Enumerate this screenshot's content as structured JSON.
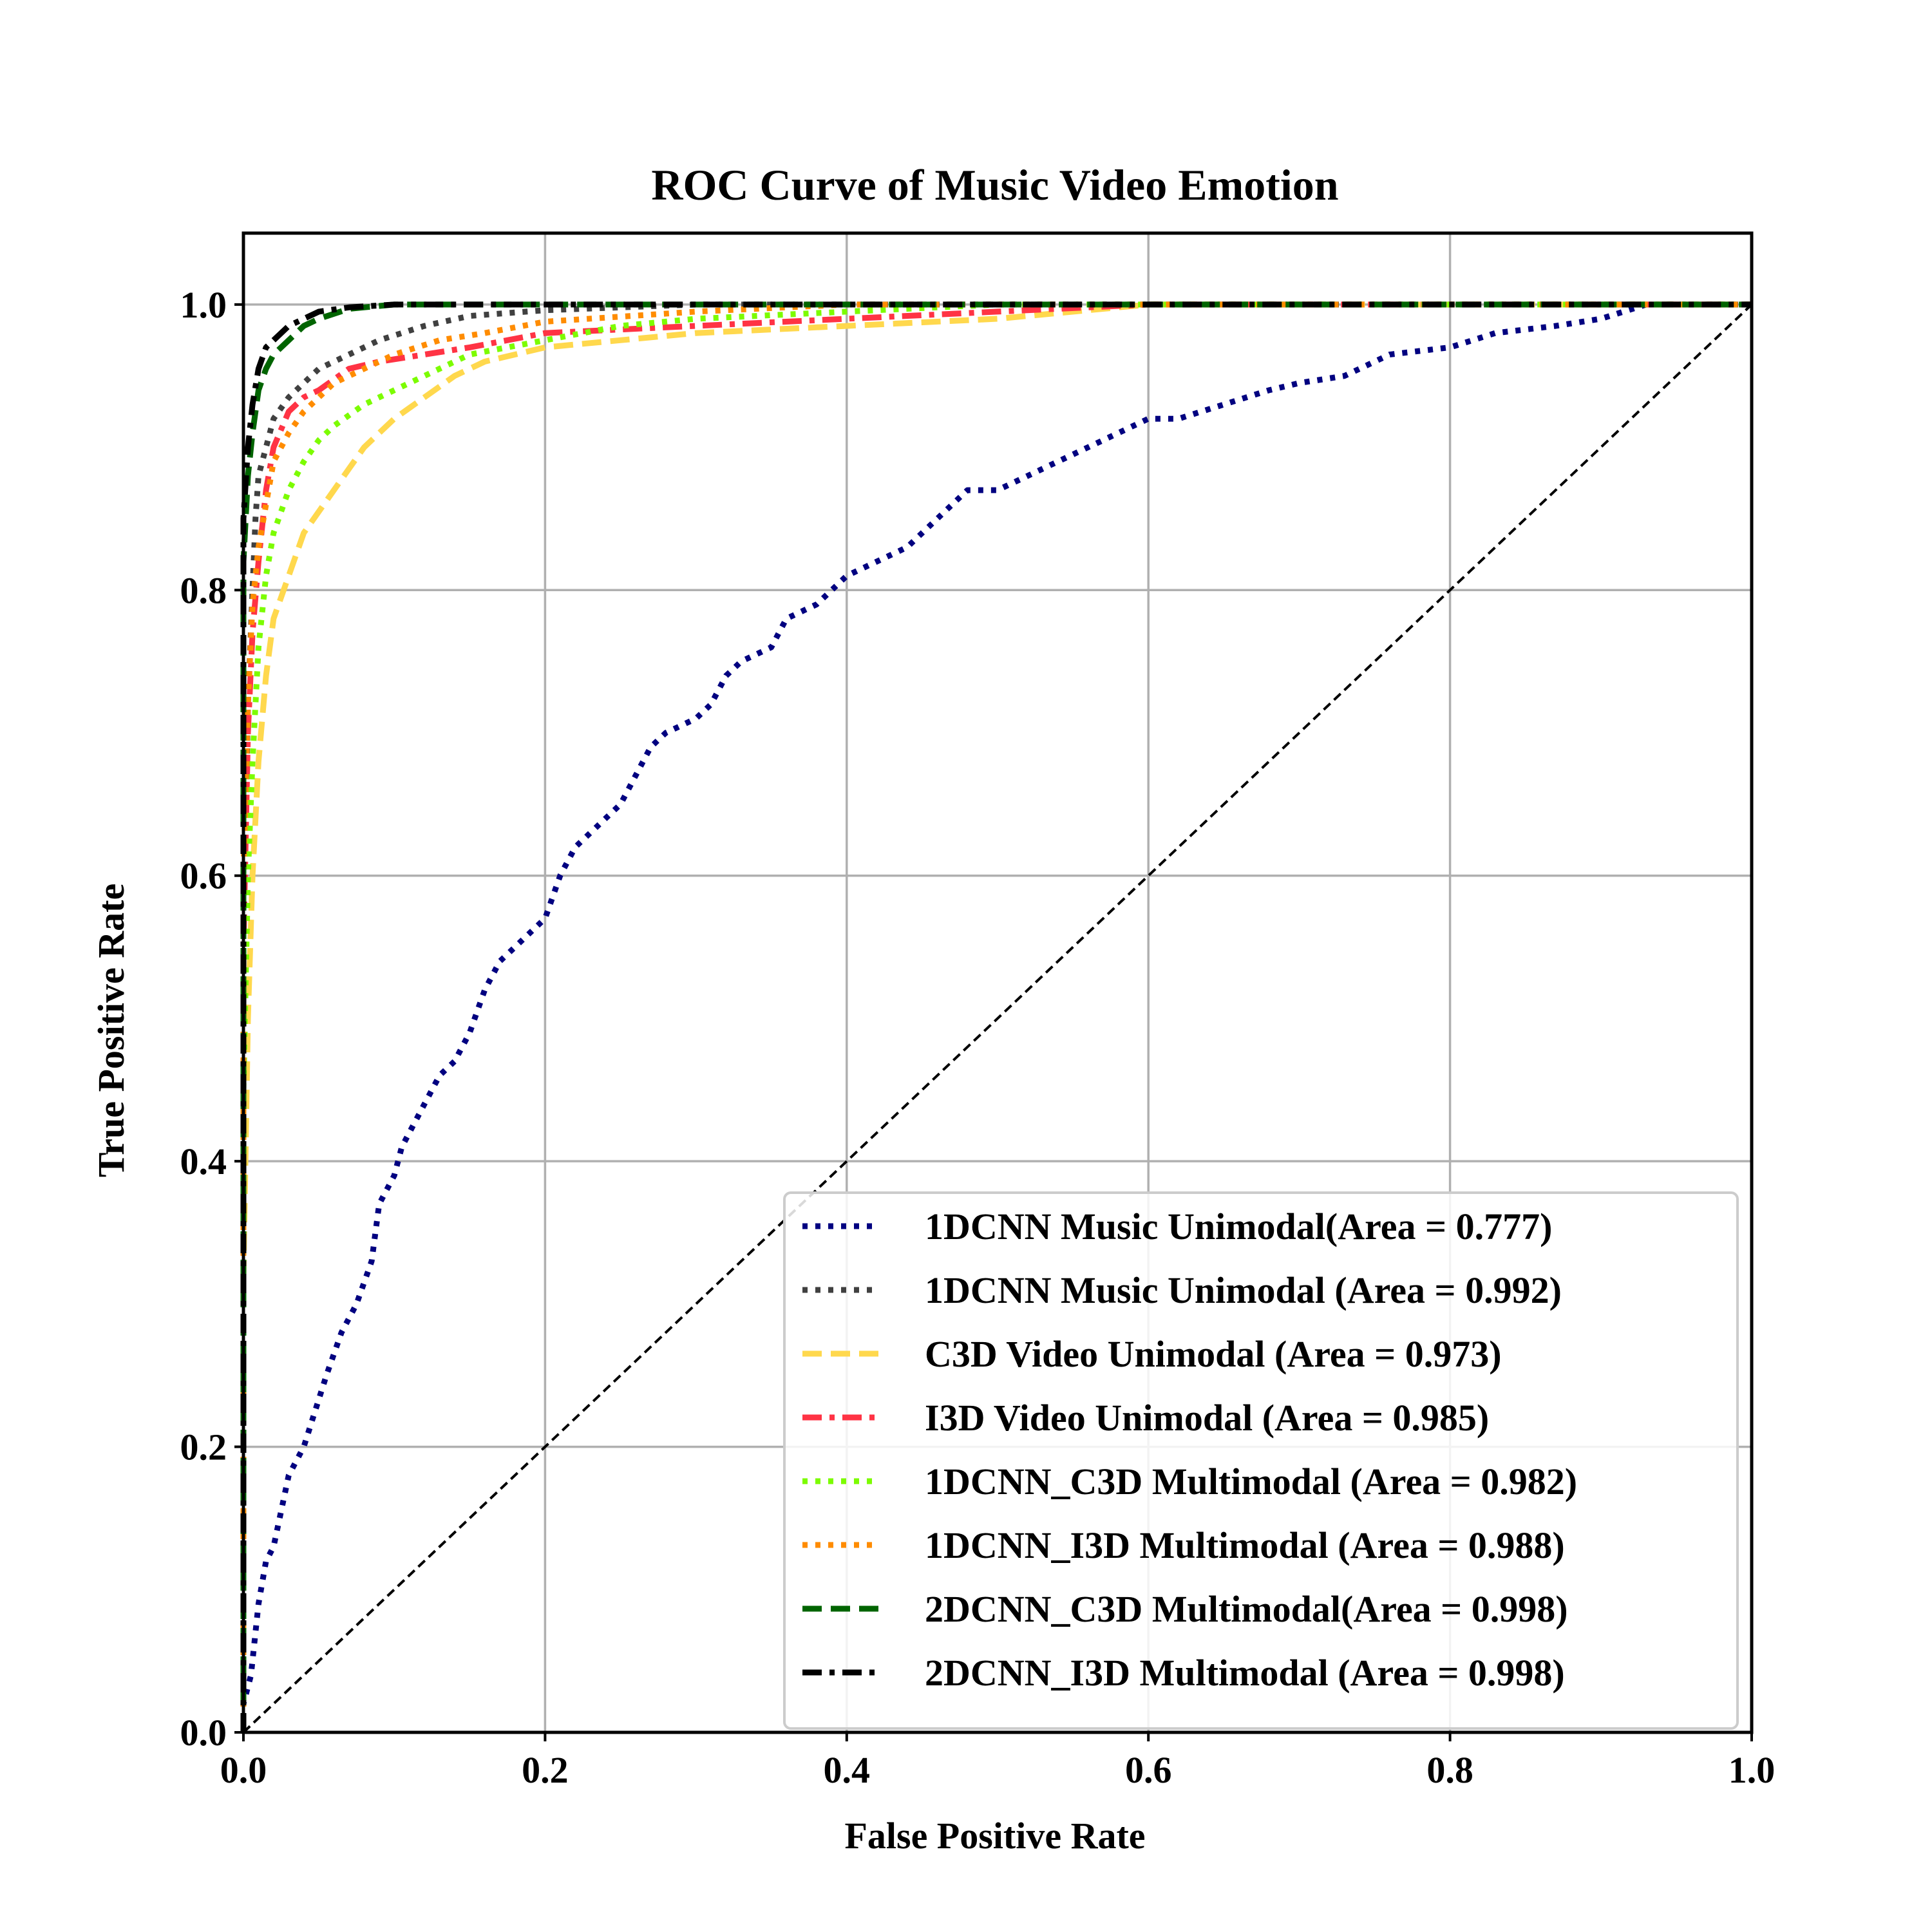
{
  "chart_data": {
    "type": "line",
    "title": "ROC Curve of Music Video Emotion",
    "xlabel": "False Positive Rate",
    "ylabel": "True Positive Rate",
    "xlim": [
      0.0,
      1.0
    ],
    "ylim": [
      0.0,
      1.05
    ],
    "xticks": [
      0.0,
      0.2,
      0.4,
      0.6,
      0.8,
      1.0
    ],
    "yticks": [
      0.0,
      0.2,
      0.4,
      0.6,
      0.8,
      1.0
    ],
    "xtick_labels": [
      "0.0",
      "0.2",
      "0.4",
      "0.6",
      "0.8",
      "1.0"
    ],
    "ytick_labels": [
      "0.0",
      "0.2",
      "0.4",
      "0.6",
      "0.8",
      "1.0"
    ],
    "grid": true,
    "legend_position": "lower-right",
    "series": [
      {
        "name": "1DCNN Music Unimodal(Area = 0.777)",
        "color": "#000080",
        "style": "dotted",
        "points": [
          [
            0.0,
            0.0
          ],
          [
            0.0,
            0.02
          ],
          [
            0.005,
            0.04
          ],
          [
            0.01,
            0.09
          ],
          [
            0.015,
            0.12
          ],
          [
            0.02,
            0.13
          ],
          [
            0.03,
            0.18
          ],
          [
            0.04,
            0.2
          ],
          [
            0.055,
            0.25
          ],
          [
            0.065,
            0.28
          ],
          [
            0.075,
            0.3
          ],
          [
            0.085,
            0.33
          ],
          [
            0.09,
            0.37
          ],
          [
            0.1,
            0.39
          ],
          [
            0.105,
            0.41
          ],
          [
            0.12,
            0.44
          ],
          [
            0.13,
            0.46
          ],
          [
            0.14,
            0.47
          ],
          [
            0.15,
            0.49
          ],
          [
            0.16,
            0.52
          ],
          [
            0.17,
            0.54
          ],
          [
            0.18,
            0.55
          ],
          [
            0.19,
            0.56
          ],
          [
            0.2,
            0.57
          ],
          [
            0.21,
            0.6
          ],
          [
            0.22,
            0.62
          ],
          [
            0.23,
            0.63
          ],
          [
            0.25,
            0.65
          ],
          [
            0.26,
            0.67
          ],
          [
            0.27,
            0.69
          ],
          [
            0.28,
            0.7
          ],
          [
            0.3,
            0.71
          ],
          [
            0.31,
            0.72
          ],
          [
            0.32,
            0.74
          ],
          [
            0.33,
            0.75
          ],
          [
            0.35,
            0.76
          ],
          [
            0.36,
            0.78
          ],
          [
            0.38,
            0.79
          ],
          [
            0.4,
            0.81
          ],
          [
            0.42,
            0.82
          ],
          [
            0.44,
            0.83
          ],
          [
            0.46,
            0.85
          ],
          [
            0.48,
            0.87
          ],
          [
            0.5,
            0.87
          ],
          [
            0.52,
            0.88
          ],
          [
            0.54,
            0.89
          ],
          [
            0.56,
            0.9
          ],
          [
            0.58,
            0.91
          ],
          [
            0.6,
            0.92
          ],
          [
            0.62,
            0.92
          ],
          [
            0.65,
            0.93
          ],
          [
            0.68,
            0.94
          ],
          [
            0.7,
            0.945
          ],
          [
            0.73,
            0.95
          ],
          [
            0.76,
            0.965
          ],
          [
            0.8,
            0.97
          ],
          [
            0.83,
            0.98
          ],
          [
            0.87,
            0.985
          ],
          [
            0.9,
            0.99
          ],
          [
            0.93,
            1.0
          ],
          [
            1.0,
            1.0
          ]
        ]
      },
      {
        "name": "1DCNN Music Unimodal (Area = 0.992)",
        "color": "#404040",
        "style": "dotted",
        "points": [
          [
            0.0,
            0.0
          ],
          [
            0.0,
            0.55
          ],
          [
            0.003,
            0.72
          ],
          [
            0.006,
            0.8
          ],
          [
            0.008,
            0.85
          ],
          [
            0.01,
            0.88
          ],
          [
            0.015,
            0.9
          ],
          [
            0.02,
            0.92
          ],
          [
            0.03,
            0.935
          ],
          [
            0.04,
            0.945
          ],
          [
            0.05,
            0.955
          ],
          [
            0.07,
            0.965
          ],
          [
            0.09,
            0.975
          ],
          [
            0.12,
            0.985
          ],
          [
            0.15,
            0.992
          ],
          [
            0.2,
            0.996
          ],
          [
            0.3,
            1.0
          ],
          [
            1.0,
            1.0
          ]
        ]
      },
      {
        "name": "C3D Video Unimodal (Area = 0.973)",
        "color": "#FFD84D",
        "style": "dashed",
        "points": [
          [
            0.0,
            0.0
          ],
          [
            0.0,
            0.32
          ],
          [
            0.003,
            0.5
          ],
          [
            0.006,
            0.6
          ],
          [
            0.01,
            0.68
          ],
          [
            0.015,
            0.74
          ],
          [
            0.02,
            0.78
          ],
          [
            0.03,
            0.81
          ],
          [
            0.04,
            0.84
          ],
          [
            0.05,
            0.855
          ],
          [
            0.06,
            0.87
          ],
          [
            0.07,
            0.885
          ],
          [
            0.08,
            0.9
          ],
          [
            0.09,
            0.91
          ],
          [
            0.1,
            0.92
          ],
          [
            0.12,
            0.935
          ],
          [
            0.14,
            0.95
          ],
          [
            0.16,
            0.96
          ],
          [
            0.18,
            0.965
          ],
          [
            0.2,
            0.97
          ],
          [
            0.25,
            0.975
          ],
          [
            0.3,
            0.98
          ],
          [
            0.4,
            0.985
          ],
          [
            0.5,
            0.99
          ],
          [
            0.6,
            1.0
          ],
          [
            1.0,
            1.0
          ]
        ]
      },
      {
        "name": "I3D Video Unimodal (Area = 0.985)",
        "color": "#FF3344",
        "style": "dashdot",
        "points": [
          [
            0.0,
            0.0
          ],
          [
            0.0,
            0.55
          ],
          [
            0.003,
            0.7
          ],
          [
            0.006,
            0.77
          ],
          [
            0.01,
            0.82
          ],
          [
            0.015,
            0.87
          ],
          [
            0.02,
            0.9
          ],
          [
            0.03,
            0.925
          ],
          [
            0.04,
            0.935
          ],
          [
            0.05,
            0.94
          ],
          [
            0.07,
            0.955
          ],
          [
            0.09,
            0.96
          ],
          [
            0.12,
            0.965
          ],
          [
            0.15,
            0.97
          ],
          [
            0.2,
            0.98
          ],
          [
            0.3,
            0.985
          ],
          [
            0.4,
            0.99
          ],
          [
            0.5,
            0.995
          ],
          [
            0.6,
            1.0
          ],
          [
            1.0,
            1.0
          ]
        ]
      },
      {
        "name": "1DCNN_C3D Multimodal (Area = 0.982)",
        "color": "#7CFC00",
        "style": "dotted",
        "points": [
          [
            0.0,
            0.0
          ],
          [
            0.0,
            0.45
          ],
          [
            0.003,
            0.6
          ],
          [
            0.006,
            0.68
          ],
          [
            0.01,
            0.76
          ],
          [
            0.015,
            0.81
          ],
          [
            0.02,
            0.84
          ],
          [
            0.03,
            0.87
          ],
          [
            0.04,
            0.89
          ],
          [
            0.05,
            0.905
          ],
          [
            0.06,
            0.915
          ],
          [
            0.08,
            0.93
          ],
          [
            0.1,
            0.94
          ],
          [
            0.12,
            0.95
          ],
          [
            0.15,
            0.965
          ],
          [
            0.2,
            0.975
          ],
          [
            0.25,
            0.985
          ],
          [
            0.3,
            0.99
          ],
          [
            0.4,
            0.995
          ],
          [
            0.5,
            1.0
          ],
          [
            1.0,
            1.0
          ]
        ]
      },
      {
        "name": "1DCNN_I3D Multimodal (Area = 0.988)",
        "color": "#FF8C00",
        "style": "dotted",
        "points": [
          [
            0.0,
            0.0
          ],
          [
            0.0,
            0.6
          ],
          [
            0.003,
            0.72
          ],
          [
            0.006,
            0.79
          ],
          [
            0.01,
            0.83
          ],
          [
            0.015,
            0.86
          ],
          [
            0.02,
            0.89
          ],
          [
            0.03,
            0.91
          ],
          [
            0.04,
            0.925
          ],
          [
            0.05,
            0.935
          ],
          [
            0.06,
            0.945
          ],
          [
            0.08,
            0.955
          ],
          [
            0.1,
            0.965
          ],
          [
            0.13,
            0.975
          ],
          [
            0.16,
            0.98
          ],
          [
            0.2,
            0.988
          ],
          [
            0.3,
            0.995
          ],
          [
            0.4,
            1.0
          ],
          [
            1.0,
            1.0
          ]
        ]
      },
      {
        "name": "2DCNN_C3D Multimodal(Area = 0.998)",
        "color": "#006400",
        "style": "dashed",
        "points": [
          [
            0.0,
            0.0
          ],
          [
            0.0,
            0.82
          ],
          [
            0.003,
            0.88
          ],
          [
            0.006,
            0.91
          ],
          [
            0.01,
            0.94
          ],
          [
            0.015,
            0.955
          ],
          [
            0.02,
            0.965
          ],
          [
            0.03,
            0.975
          ],
          [
            0.04,
            0.985
          ],
          [
            0.05,
            0.99
          ],
          [
            0.07,
            0.997
          ],
          [
            0.1,
            1.0
          ],
          [
            1.0,
            1.0
          ]
        ]
      },
      {
        "name": "2DCNN_I3D Multimodal (Area = 0.998)",
        "color": "#000000",
        "style": "dashdot",
        "points": [
          [
            0.0,
            0.0
          ],
          [
            0.0,
            0.85
          ],
          [
            0.003,
            0.9
          ],
          [
            0.006,
            0.93
          ],
          [
            0.01,
            0.955
          ],
          [
            0.015,
            0.97
          ],
          [
            0.02,
            0.975
          ],
          [
            0.03,
            0.985
          ],
          [
            0.04,
            0.99
          ],
          [
            0.05,
            0.995
          ],
          [
            0.07,
            0.998
          ],
          [
            0.1,
            1.0
          ],
          [
            1.0,
            1.0
          ]
        ]
      },
      {
        "name": "",
        "color": "#000000",
        "style": "diagonal",
        "points": [
          [
            0.0,
            0.0
          ],
          [
            1.0,
            1.0
          ]
        ]
      }
    ]
  }
}
